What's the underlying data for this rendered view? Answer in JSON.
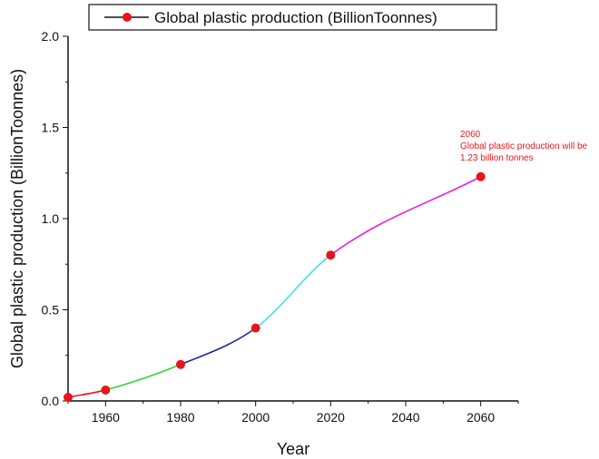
{
  "chart_data": {
    "type": "line",
    "xlabel": "Year",
    "ylabel": "Global plastic production (BillionToonnes)",
    "xlim": [
      1950,
      2070
    ],
    "ylim": [
      0,
      2.0
    ],
    "x_ticks": [
      1960,
      1980,
      2000,
      2020,
      2040,
      2060
    ],
    "y_ticks": [
      0.0,
      0.5,
      1.0,
      1.5,
      2.0
    ],
    "y_tick_labels": [
      "0.0",
      "0.5",
      "1.0",
      "1.5",
      "2.0"
    ],
    "series": [
      {
        "name": "Global plastic production (BillionToonnes)",
        "x": [
          1950,
          1960,
          1980,
          2000,
          2020,
          2060
        ],
        "y": [
          0.02,
          0.06,
          0.2,
          0.4,
          0.8,
          1.23
        ],
        "marker_color": "#e8141c"
      }
    ],
    "segment_colors": [
      "#e8141c",
      "#37d43a",
      "#1b2a9e",
      "#3fe0ea",
      "#e91be6"
    ],
    "legend_position": "top",
    "grid": false,
    "annotation": {
      "x": 2060,
      "lines": [
        "2060",
        "Global plastic production will be",
        "1.23 billion tonnes"
      ],
      "color": "#e8141c"
    }
  }
}
